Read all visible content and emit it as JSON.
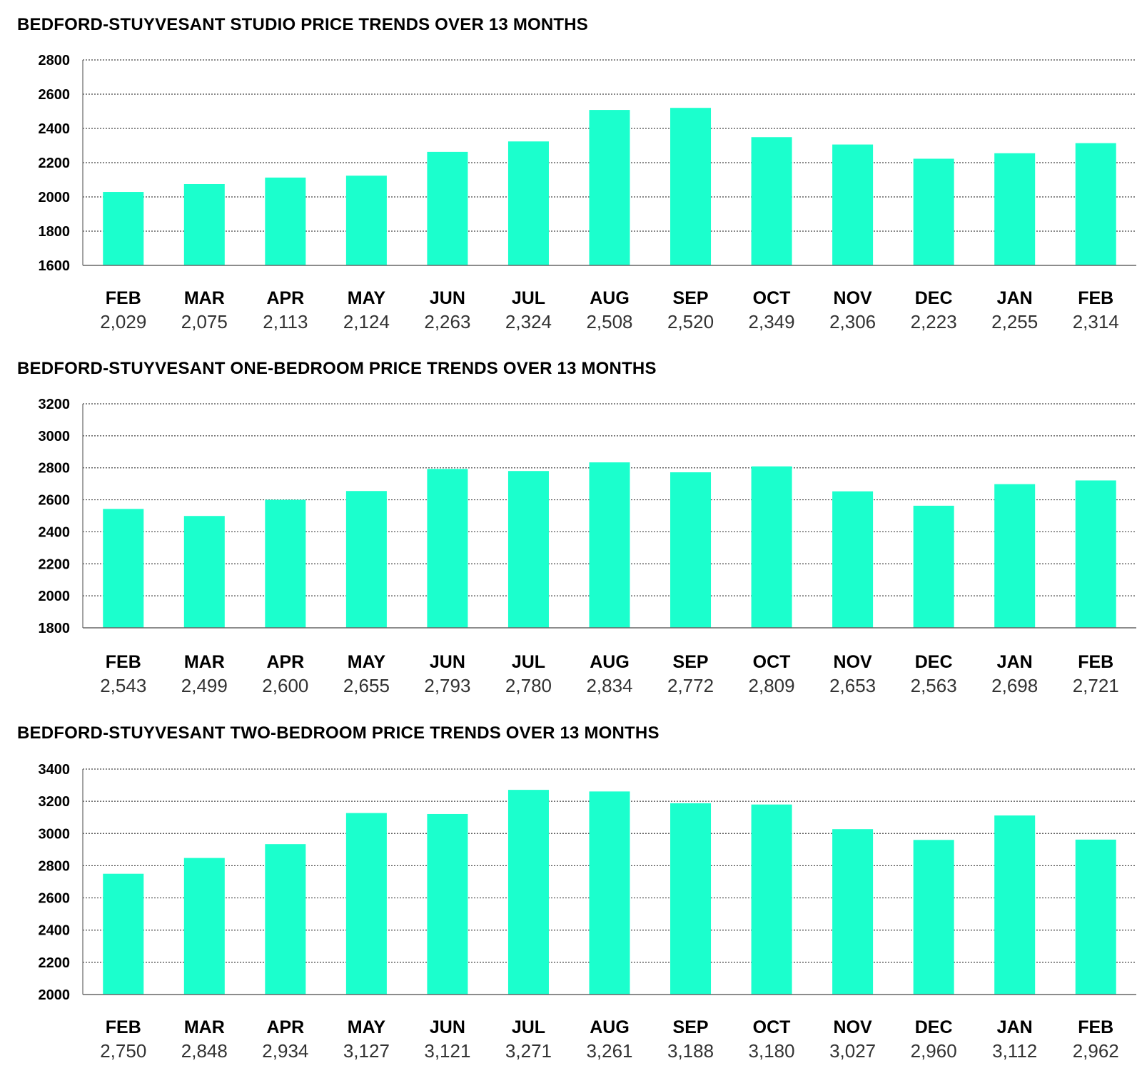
{
  "colors": {
    "bar": "#1bffcd",
    "grid": "#444444",
    "axis": "#666666",
    "text": "#000000",
    "value_text": "#333333"
  },
  "chart_data": [
    {
      "type": "bar",
      "title": "BEDFORD-STUYVESANT STUDIO PRICE TRENDS OVER 13 MONTHS",
      "categories": [
        "FEB",
        "MAR",
        "APR",
        "MAY",
        "JUN",
        "JUL",
        "AUG",
        "SEP",
        "OCT",
        "NOV",
        "DEC",
        "JAN",
        "FEB"
      ],
      "values": [
        2029,
        2075,
        2113,
        2124,
        2263,
        2324,
        2508,
        2520,
        2349,
        2306,
        2223,
        2255,
        2314
      ],
      "value_labels": [
        "2,029",
        "2,075",
        "2,113",
        "2,124",
        "2,263",
        "2,324",
        "2,508",
        "2,520",
        "2,349",
        "2,306",
        "2,223",
        "2,255",
        "2,314"
      ],
      "ylim": [
        1600,
        2800
      ],
      "yticks": [
        1600,
        1800,
        2000,
        2200,
        2400,
        2600,
        2800
      ],
      "xlabel": "",
      "ylabel": "",
      "grid": true
    },
    {
      "type": "bar",
      "title": "BEDFORD-STUYVESANT ONE-BEDROOM PRICE TRENDS OVER 13 MONTHS",
      "categories": [
        "FEB",
        "MAR",
        "APR",
        "MAY",
        "JUN",
        "JUL",
        "AUG",
        "SEP",
        "OCT",
        "NOV",
        "DEC",
        "JAN",
        "FEB"
      ],
      "values": [
        2543,
        2499,
        2600,
        2655,
        2793,
        2780,
        2834,
        2772,
        2809,
        2653,
        2563,
        2698,
        2721
      ],
      "value_labels": [
        "2,543",
        "2,499",
        "2,600",
        "2,655",
        "2,793",
        "2,780",
        "2,834",
        "2,772",
        "2,809",
        "2,653",
        "2,563",
        "2,698",
        "2,721"
      ],
      "ylim": [
        1800,
        3200
      ],
      "yticks": [
        1800,
        2000,
        2200,
        2400,
        2600,
        2800,
        3000,
        3200
      ],
      "xlabel": "",
      "ylabel": "",
      "grid": true
    },
    {
      "type": "bar",
      "title": "BEDFORD-STUYVESANT TWO-BEDROOM PRICE TRENDS OVER 13 MONTHS",
      "categories": [
        "FEB",
        "MAR",
        "APR",
        "MAY",
        "JUN",
        "JUL",
        "AUG",
        "SEP",
        "OCT",
        "NOV",
        "DEC",
        "JAN",
        "FEB"
      ],
      "values": [
        2750,
        2848,
        2934,
        3127,
        3121,
        3271,
        3261,
        3188,
        3180,
        3027,
        2960,
        3112,
        2962
      ],
      "value_labels": [
        "2,750",
        "2,848",
        "2,934",
        "3,127",
        "3,121",
        "3,271",
        "3,261",
        "3,188",
        "3,180",
        "3,027",
        "2,960",
        "3,112",
        "2,962"
      ],
      "ylim": [
        2000,
        3400
      ],
      "yticks": [
        2000,
        2200,
        2400,
        2600,
        2800,
        3000,
        3200,
        3400
      ],
      "xlabel": "",
      "ylabel": "",
      "grid": true
    }
  ]
}
